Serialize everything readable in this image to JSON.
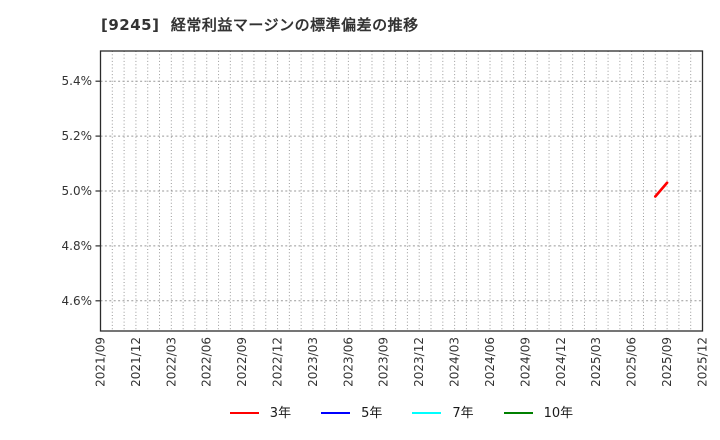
{
  "chart_data": {
    "type": "line",
    "title": "[9245]  経常利益マージンの標準偏差の推移",
    "x_range": {
      "start": "2021/09",
      "end": "2025/12"
    },
    "x_tick_labels": [
      "2021/09",
      "2021/12",
      "2022/03",
      "2022/06",
      "2022/09",
      "2022/12",
      "2023/03",
      "2023/06",
      "2023/09",
      "2023/12",
      "2024/03",
      "2024/06",
      "2024/09",
      "2024/12",
      "2025/03",
      "2025/06",
      "2025/09",
      "2025/12"
    ],
    "y_axis": {
      "min": 4.49,
      "max": 5.51,
      "tick_values": [
        5.4,
        5.2,
        5.0,
        4.8,
        4.6
      ],
      "tick_labels": [
        "5.4%",
        "5.2%",
        "5.0%",
        "4.8%",
        "4.6%"
      ]
    },
    "grid": {
      "show": true,
      "x_interval": "monthly",
      "x_style": "dotted",
      "y_style": "dashed"
    },
    "series": [
      {
        "name": "3年",
        "color": "#ff0000",
        "points": [
          {
            "date": "2025/08",
            "value": 4.98
          },
          {
            "date": "2025/09",
            "value": 5.03
          }
        ]
      },
      {
        "name": "5年",
        "color": "#0000ff",
        "points": []
      },
      {
        "name": "7年",
        "color": "#00ffff",
        "points": []
      },
      {
        "name": "10年",
        "color": "#008000",
        "points": []
      }
    ],
    "legend": {
      "position": "bottom-center",
      "items": [
        "3年",
        "5年",
        "7年",
        "10年"
      ]
    }
  }
}
